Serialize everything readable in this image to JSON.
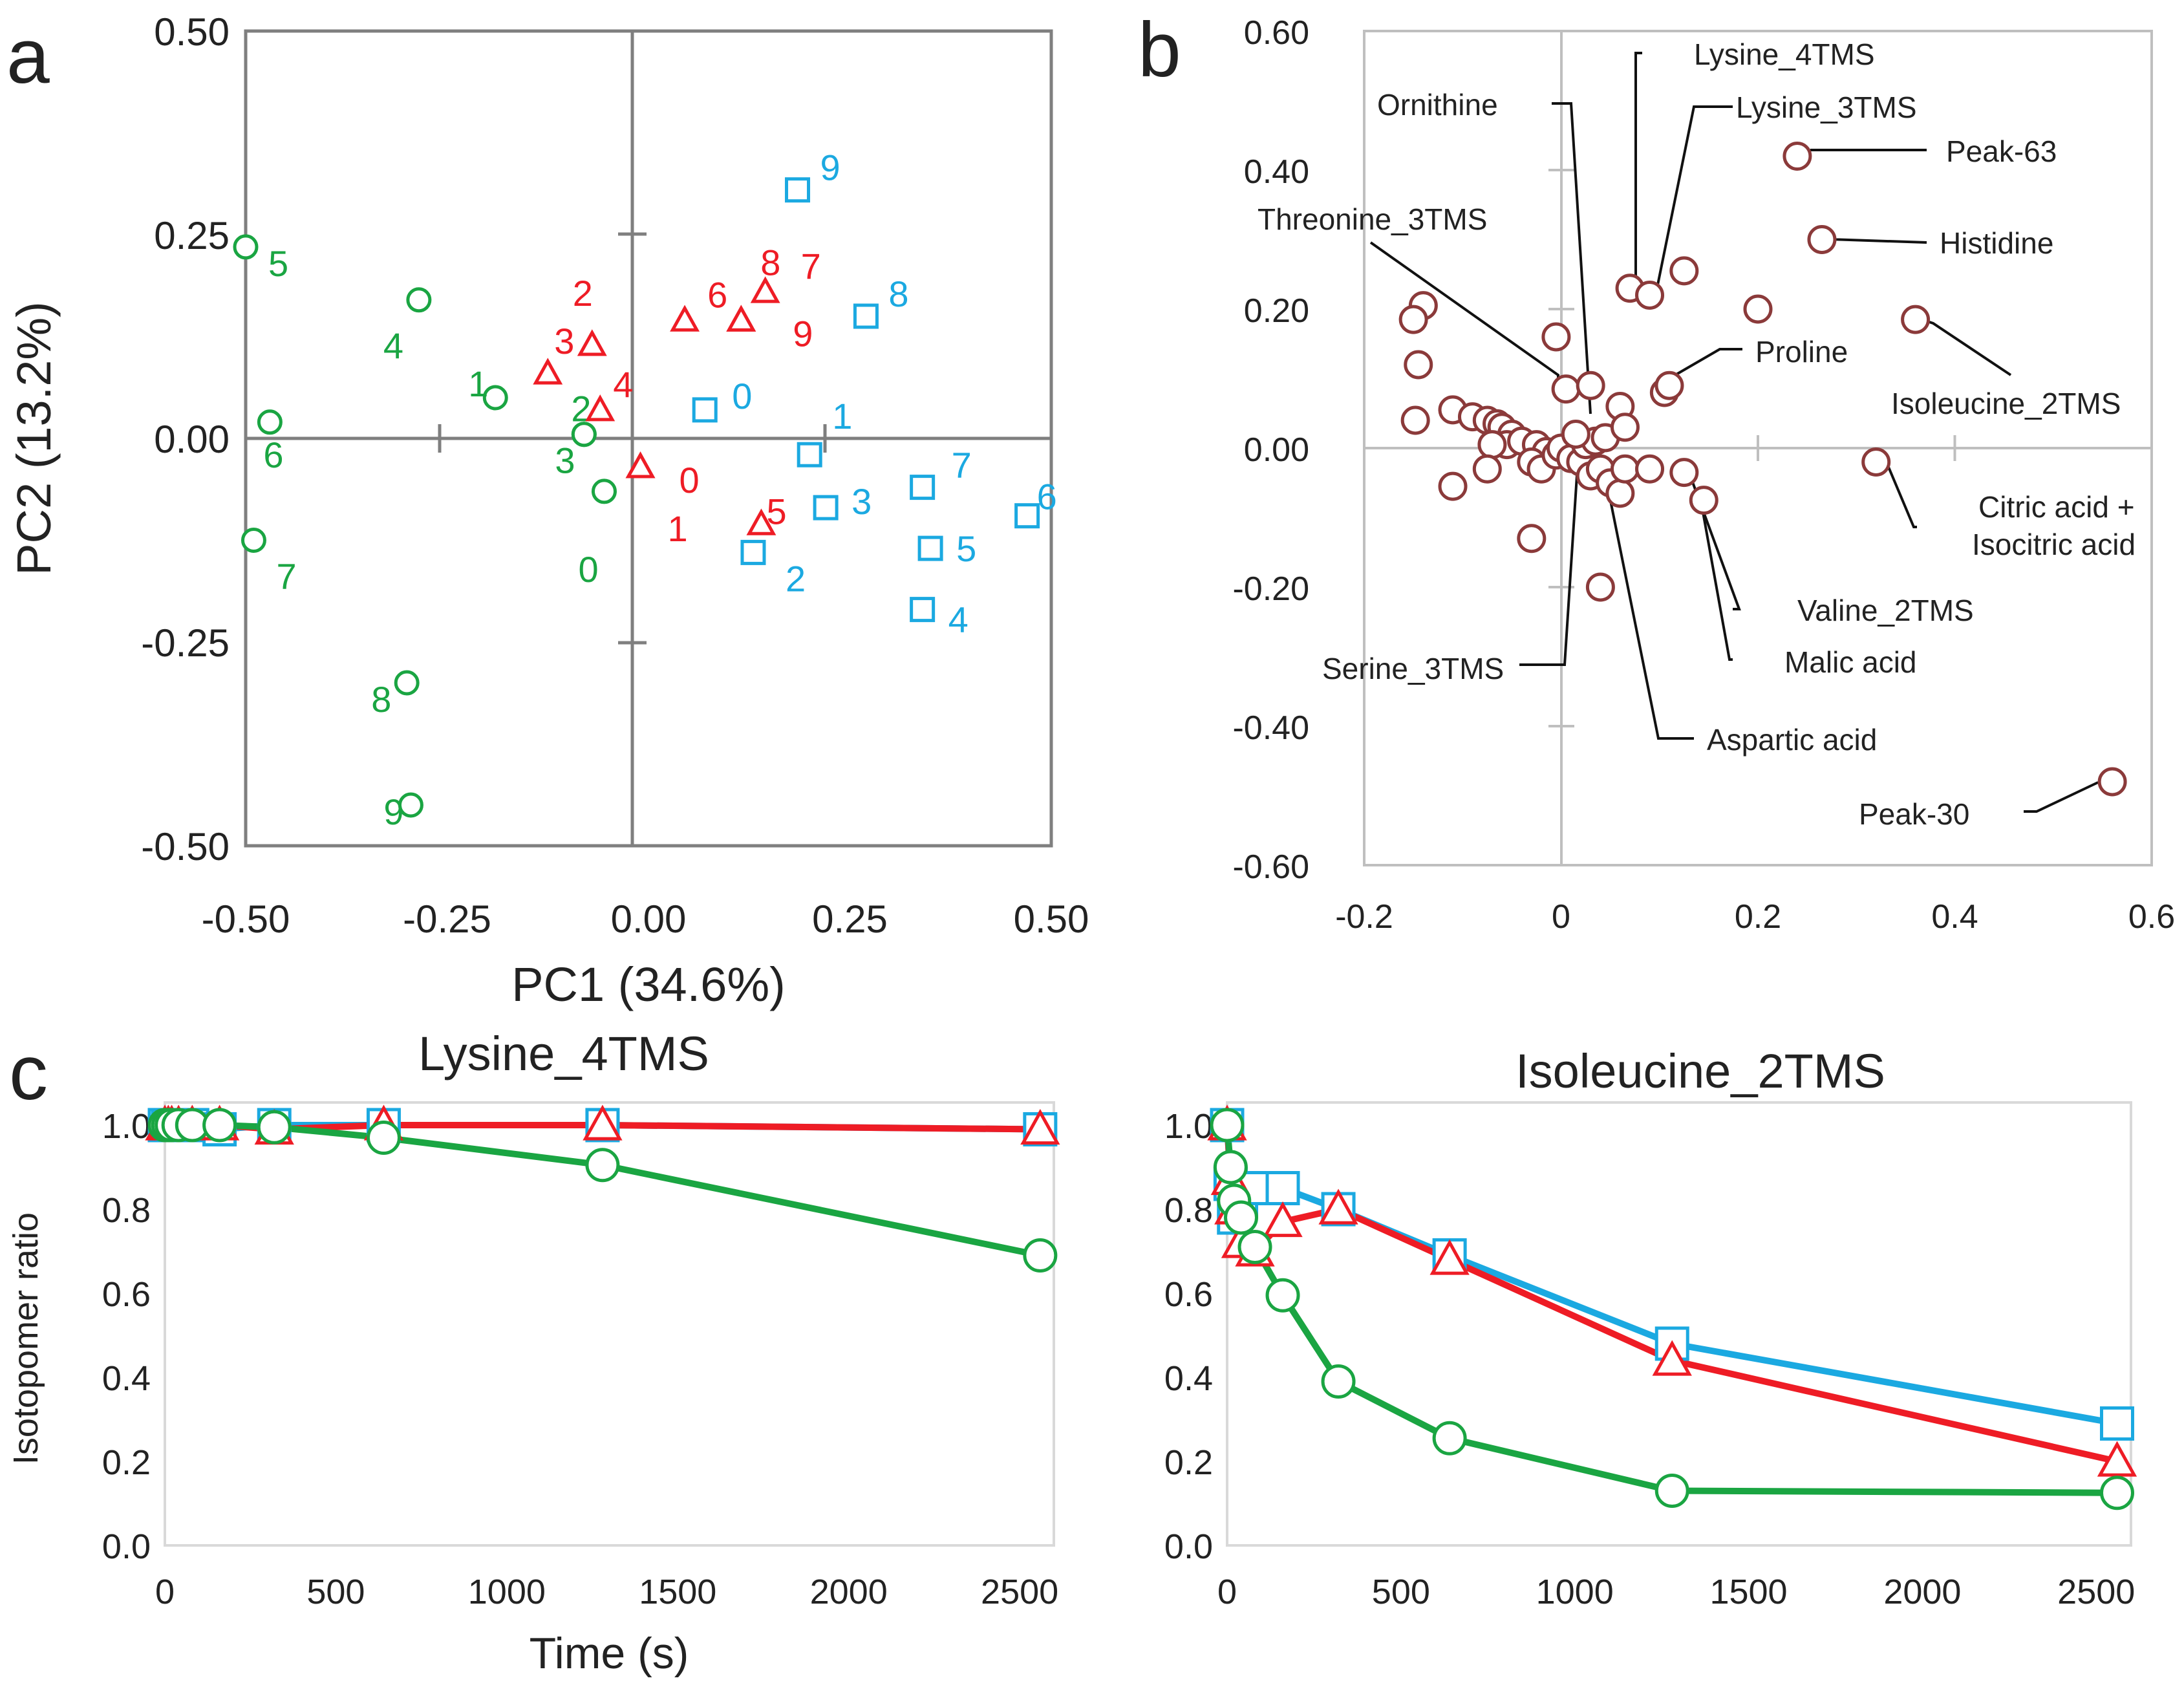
{
  "colors": {
    "green": "#1aa542",
    "red": "#ee1c25",
    "blue": "#1ba9e1",
    "brown": "#8b3a3a",
    "axis_dark": "#7f7f7f",
    "axis_light": "#bfbfbf",
    "grid": "#d9d9d9",
    "text": "#222222"
  },
  "panels": {
    "a": {
      "label": "a"
    },
    "b": {
      "label": "b"
    },
    "c": {
      "label": "c"
    }
  },
  "chart_data": [
    {
      "id": "a",
      "type": "scatter",
      "xlabel": "PC1 (34.6%)",
      "ylabel": "PC2 (13.2%)",
      "xlim": [
        -0.5,
        0.5
      ],
      "ylim": [
        -0.5,
        0.5
      ],
      "xticks": [
        "-0.50",
        "-0.25",
        "0.00",
        "0.25",
        "0.50"
      ],
      "yticks": [
        "0.50",
        "0.25",
        "0.00",
        "-0.25",
        "-0.50"
      ],
      "grid": false,
      "series": [
        {
          "name": "green-circles",
          "marker": "circle",
          "color": "green",
          "points": [
            {
              "label": "0",
              "x": -0.055,
              "y": -0.065
            },
            {
              "label": "1",
              "x": -0.19,
              "y": 0.05
            },
            {
              "label": "2",
              "x": -0.08,
              "y": 0.005
            },
            {
              "label": "3",
              "x": -0.08,
              "y": 0.005
            },
            {
              "label": "4",
              "x": -0.285,
              "y": 0.17
            },
            {
              "label": "5",
              "x": -0.5,
              "y": 0.235
            },
            {
              "label": "6",
              "x": -0.47,
              "y": 0.02
            },
            {
              "label": "7",
              "x": -0.49,
              "y": -0.125
            },
            {
              "label": "8",
              "x": -0.3,
              "y": -0.3
            },
            {
              "label": "9",
              "x": -0.295,
              "y": -0.45
            }
          ]
        },
        {
          "name": "red-triangles",
          "marker": "triangle",
          "color": "red",
          "points": [
            {
              "label": "0",
              "x": -0.01,
              "y": -0.035
            },
            {
              "label": "1",
              "x": -0.01,
              "y": -0.035
            },
            {
              "label": "2",
              "x": -0.07,
              "y": 0.115
            },
            {
              "label": "3",
              "x": -0.125,
              "y": 0.08
            },
            {
              "label": "4",
              "x": -0.06,
              "y": 0.035
            },
            {
              "label": "5",
              "x": 0.14,
              "y": -0.105
            },
            {
              "label": "6",
              "x": 0.045,
              "y": 0.145
            },
            {
              "label": "7",
              "x": 0.145,
              "y": 0.18
            },
            {
              "label": "8",
              "x": 0.115,
              "y": 0.145
            },
            {
              "label": "9",
              "x": 0.115,
              "y": 0.145
            }
          ]
        },
        {
          "name": "blue-squares",
          "marker": "square",
          "color": "blue",
          "points": [
            {
              "label": "0",
              "x": 0.07,
              "y": 0.035
            },
            {
              "label": "1",
              "x": 0.2,
              "y": -0.02
            },
            {
              "label": "2",
              "x": 0.13,
              "y": -0.14
            },
            {
              "label": "3",
              "x": 0.22,
              "y": -0.085
            },
            {
              "label": "4",
              "x": 0.34,
              "y": -0.21
            },
            {
              "label": "5",
              "x": 0.35,
              "y": -0.135
            },
            {
              "label": "6",
              "x": 0.47,
              "y": -0.095
            },
            {
              "label": "7",
              "x": 0.34,
              "y": -0.06
            },
            {
              "label": "8",
              "x": 0.27,
              "y": 0.15
            },
            {
              "label": "9",
              "x": 0.185,
              "y": 0.305
            }
          ]
        }
      ]
    },
    {
      "id": "b",
      "type": "scatter",
      "xlim": [
        -0.2,
        0.6
      ],
      "ylim": [
        -0.6,
        0.6
      ],
      "xticks": [
        "-0.2",
        "0",
        "0.2",
        "0.4",
        "0.6"
      ],
      "yticks": [
        "0.60",
        "0.40",
        "0.20",
        "0.00",
        "-0.20",
        "-0.40",
        "-0.60"
      ],
      "grid": false,
      "points": [
        [
          -0.14,
          0.205
        ],
        [
          -0.15,
          0.185
        ],
        [
          -0.145,
          0.12
        ],
        [
          -0.148,
          0.04
        ],
        [
          -0.11,
          0.055
        ],
        [
          -0.09,
          0.045
        ],
        [
          -0.075,
          0.04
        ],
        [
          -0.065,
          0.035
        ],
        [
          -0.06,
          0.03
        ],
        [
          -0.05,
          0.02
        ],
        [
          -0.055,
          0.005
        ],
        [
          -0.07,
          0.005
        ],
        [
          -0.04,
          0.01
        ],
        [
          -0.025,
          0.005
        ],
        [
          -0.015,
          -0.005
        ],
        [
          -0.03,
          -0.02
        ],
        [
          -0.02,
          -0.03
        ],
        [
          -0.005,
          -0.01
        ],
        [
          0.0,
          0.0
        ],
        [
          0.01,
          -0.015
        ],
        [
          0.02,
          -0.02
        ],
        [
          0.03,
          -0.04
        ],
        [
          0.04,
          -0.03
        ],
        [
          0.05,
          -0.05
        ],
        [
          0.06,
          -0.065
        ],
        [
          0.025,
          0.005
        ],
        [
          0.035,
          0.01
        ],
        [
          0.045,
          0.015
        ],
        [
          0.015,
          0.02
        ],
        [
          -0.005,
          0.16
        ],
        [
          0.005,
          0.085
        ],
        [
          0.03,
          0.09
        ],
        [
          0.06,
          0.06
        ],
        [
          0.065,
          0.03
        ],
        [
          0.065,
          -0.03
        ],
        [
          0.09,
          -0.03
        ],
        [
          -0.075,
          -0.03
        ],
        [
          -0.11,
          -0.055
        ],
        [
          -0.03,
          -0.13
        ],
        [
          0.04,
          -0.2
        ],
        [
          0.07,
          0.23
        ],
        [
          0.09,
          0.22
        ],
        [
          0.125,
          0.255
        ],
        [
          0.2,
          0.2
        ],
        [
          0.105,
          0.08
        ],
        [
          0.11,
          0.09
        ],
        [
          0.125,
          -0.035
        ],
        [
          0.145,
          -0.075
        ],
        [
          0.24,
          0.42
        ],
        [
          0.265,
          0.3
        ],
        [
          0.36,
          0.185
        ],
        [
          0.32,
          -0.02
        ],
        [
          0.56,
          -0.48
        ]
      ],
      "annotations": [
        {
          "text": "Lysine_4TMS",
          "x": 0.07,
          "y": 0.23
        },
        {
          "text": "Ornithine",
          "x": 0.03,
          "y": 0.09
        },
        {
          "text": "Lysine_3TMS",
          "x": 0.09,
          "y": 0.22
        },
        {
          "text": "Peak-63",
          "x": 0.24,
          "y": 0.42
        },
        {
          "text": "Threonine_3TMS",
          "x": 0.005,
          "y": 0.085
        },
        {
          "text": "Histidine",
          "x": 0.265,
          "y": 0.3
        },
        {
          "text": "Proline",
          "x": 0.11,
          "y": 0.09
        },
        {
          "text": "Isoleucine_2TMS",
          "x": 0.36,
          "y": 0.185
        },
        {
          "text": "Citric acid +",
          "x": 0.32,
          "y": -0.02
        },
        {
          "text": "Isocitric acid",
          "x": 0.32,
          "y": -0.02
        },
        {
          "text": "Valine_2TMS",
          "x": 0.125,
          "y": -0.035
        },
        {
          "text": "Malic acid",
          "x": 0.145,
          "y": -0.075
        },
        {
          "text": "Serine_3TMS",
          "x": 0.04,
          "y": -0.03
        },
        {
          "text": "Aspartic acid",
          "x": 0.03,
          "y": -0.04
        },
        {
          "text": "Peak-30",
          "x": 0.56,
          "y": -0.48
        }
      ]
    },
    {
      "id": "c-left",
      "type": "line",
      "title": "Lysine_4TMS",
      "xlabel": "Time (s)",
      "ylabel": "Isotopomer ratio",
      "xlim": [
        0,
        2600
      ],
      "ylim": [
        0,
        1.0
      ],
      "xticks": [
        "0",
        "500",
        "1000",
        "1500",
        "2000",
        "2500"
      ],
      "yticks": [
        "1.0",
        "0.8",
        "0.6",
        "0.4",
        "0.2",
        "0.0"
      ],
      "grid": false,
      "series": [
        {
          "name": "blue-squares",
          "color": "blue",
          "marker": "square",
          "x": [
            0,
            10,
            20,
            40,
            80,
            160,
            320,
            640,
            1280,
            2560
          ],
          "y": [
            1.0,
            1.0,
            1.0,
            1.0,
            1.0,
            0.99,
            1.0,
            1.0,
            1.0,
            0.99
          ]
        },
        {
          "name": "red-triangles",
          "color": "red",
          "marker": "triangle",
          "x": [
            0,
            10,
            20,
            40,
            80,
            160,
            320,
            640,
            1280,
            2560
          ],
          "y": [
            1.0,
            1.0,
            1.0,
            1.0,
            1.0,
            1.0,
            0.99,
            1.0,
            1.0,
            0.99
          ]
        },
        {
          "name": "green-circles",
          "color": "green",
          "marker": "circle",
          "x": [
            0,
            10,
            20,
            40,
            80,
            160,
            320,
            640,
            1280,
            2560
          ],
          "y": [
            1.0,
            1.0,
            1.0,
            1.0,
            1.0,
            1.0,
            0.995,
            0.97,
            0.905,
            0.69
          ]
        }
      ]
    },
    {
      "id": "c-right",
      "type": "line",
      "title": "Isoleucine_2TMS",
      "xlim": [
        0,
        2600
      ],
      "ylim": [
        0,
        1.0
      ],
      "xticks": [
        "0",
        "500",
        "1000",
        "1500",
        "2000",
        "2500"
      ],
      "yticks": [
        "1.0",
        "0.8",
        "0.6",
        "0.4",
        "0.2",
        "0.0"
      ],
      "grid": false,
      "series": [
        {
          "name": "blue-squares",
          "color": "blue",
          "marker": "square",
          "x": [
            0,
            10,
            20,
            40,
            80,
            160,
            320,
            640,
            1280,
            2560
          ],
          "y": [
            1.0,
            0.86,
            0.78,
            0.82,
            0.85,
            0.85,
            0.8,
            0.69,
            0.48,
            0.29
          ]
        },
        {
          "name": "red-triangles",
          "color": "red",
          "marker": "triangle",
          "x": [
            0,
            10,
            20,
            40,
            80,
            160,
            320,
            640,
            1280,
            2560
          ],
          "y": [
            1.0,
            0.87,
            0.8,
            0.72,
            0.7,
            0.77,
            0.8,
            0.68,
            0.44,
            0.2
          ]
        },
        {
          "name": "green-circles",
          "color": "green",
          "marker": "circle",
          "x": [
            0,
            10,
            20,
            40,
            80,
            160,
            320,
            640,
            1280,
            2560
          ],
          "y": [
            1.0,
            0.9,
            0.82,
            0.78,
            0.71,
            0.595,
            0.39,
            0.255,
            0.13,
            0.125
          ]
        }
      ]
    }
  ]
}
